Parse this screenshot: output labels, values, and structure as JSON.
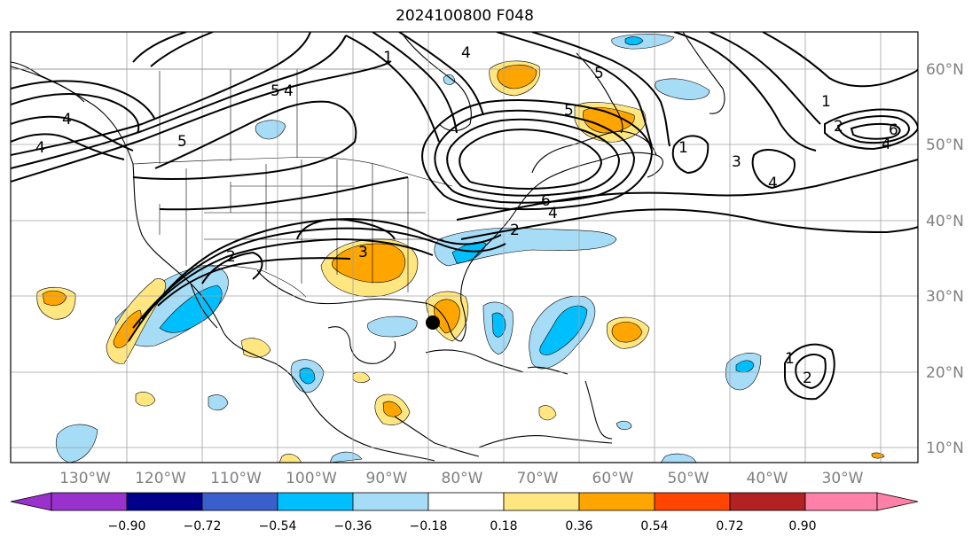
{
  "title": "2024100800 F048",
  "axes": {
    "lon_labels": [
      "130°W",
      "120°W",
      "110°W",
      "100°W",
      "90°W",
      "80°W",
      "70°W",
      "60°W",
      "50°W",
      "40°W",
      "30°W"
    ],
    "lat_labels": [
      "10°N",
      "20°N",
      "30°N",
      "40°N",
      "50°N",
      "60°N"
    ]
  },
  "colorbar": {
    "labels": [
      "−0.90",
      "−0.72",
      "−0.54",
      "−0.36",
      "−0.18",
      "0.18",
      "0.36",
      "0.54",
      "0.72",
      "0.90"
    ],
    "colors": [
      "#9932cc",
      "#00008b",
      "#3a5fcd",
      "#00bfff",
      "#a6dcf6",
      "#ffffff",
      "#ffe680",
      "#ffa500",
      "#ff4500",
      "#b22222",
      "#ff80a8"
    ]
  },
  "colors": {
    "ocean": "#ffffff",
    "land": "#ffffff",
    "coast": "#000000",
    "grid": "#a0a0a0",
    "contour": "#000000",
    "light_blue": "#a6dcf6",
    "blue": "#00bfff",
    "yellow": "#ffe680",
    "orange": "#ffa500"
  },
  "contour_labels": [
    "4",
    "4",
    "5",
    "4",
    "5",
    "2",
    "3",
    "2",
    "4",
    "6",
    "1",
    "5",
    "1",
    "3",
    "4",
    "5",
    "6",
    "4",
    "1",
    "4",
    "2",
    "1",
    "2"
  ],
  "storm_marker": "storm-center-dot"
}
